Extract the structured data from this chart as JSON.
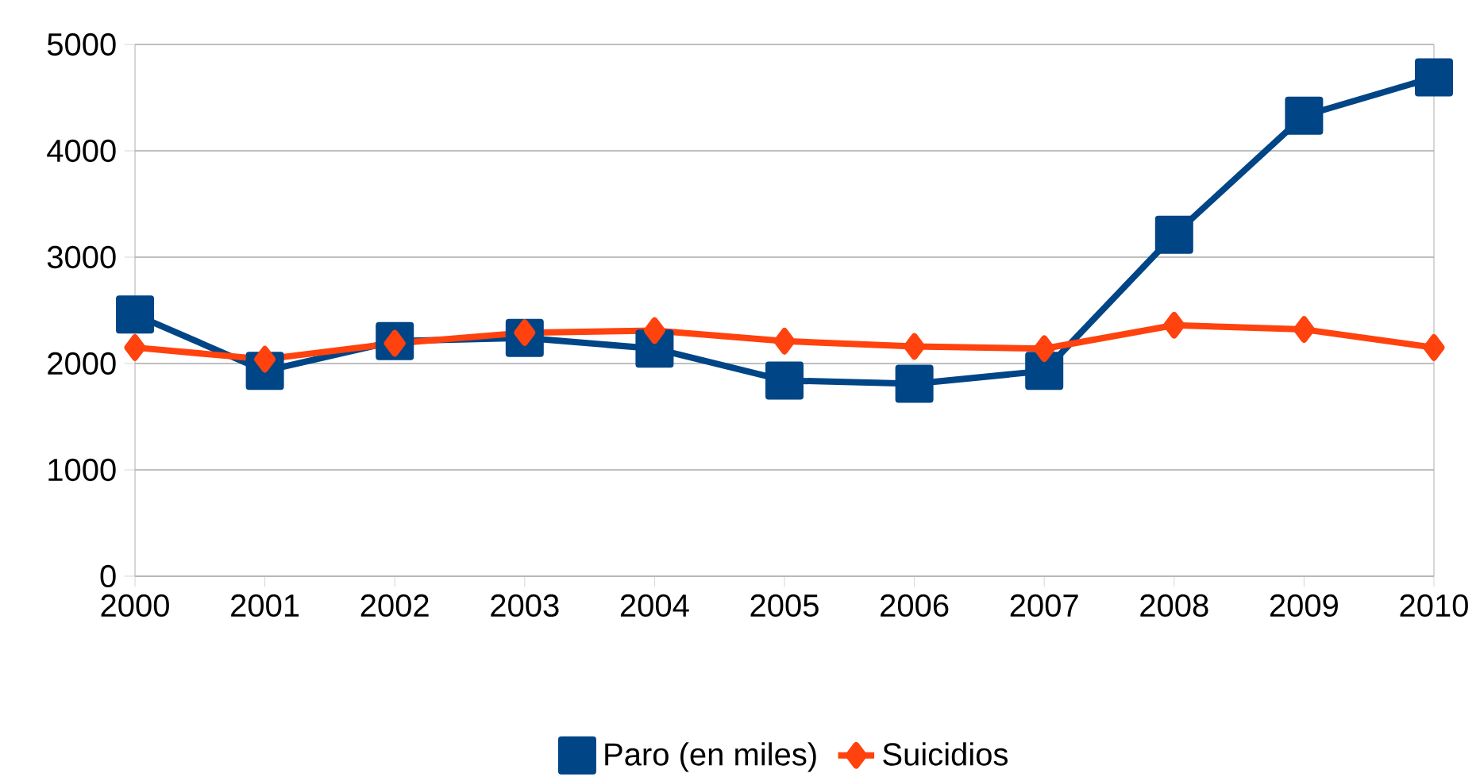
{
  "chart_data": {
    "type": "line",
    "categories": [
      "2000",
      "2001",
      "2002",
      "2003",
      "2004",
      "2005",
      "2006",
      "2007",
      "2008",
      "2009",
      "2010"
    ],
    "series": [
      {
        "name": "Paro (en miles)",
        "color": "#004586",
        "marker": "square",
        "values": [
          2460,
          1930,
          2210,
          2240,
          2140,
          1840,
          1810,
          1930,
          3210,
          4330,
          4690
        ]
      },
      {
        "name": "Suicidios",
        "color": "#ff420e",
        "marker": "diamond",
        "values": [
          2150,
          2040,
          2190,
          2290,
          2310,
          2210,
          2160,
          2140,
          2360,
          2320,
          2150
        ]
      }
    ],
    "ylim": [
      0,
      5000
    ],
    "yticks": [
      0,
      1000,
      2000,
      3000,
      4000,
      5000
    ],
    "grid": "y",
    "legend": "bottom"
  }
}
